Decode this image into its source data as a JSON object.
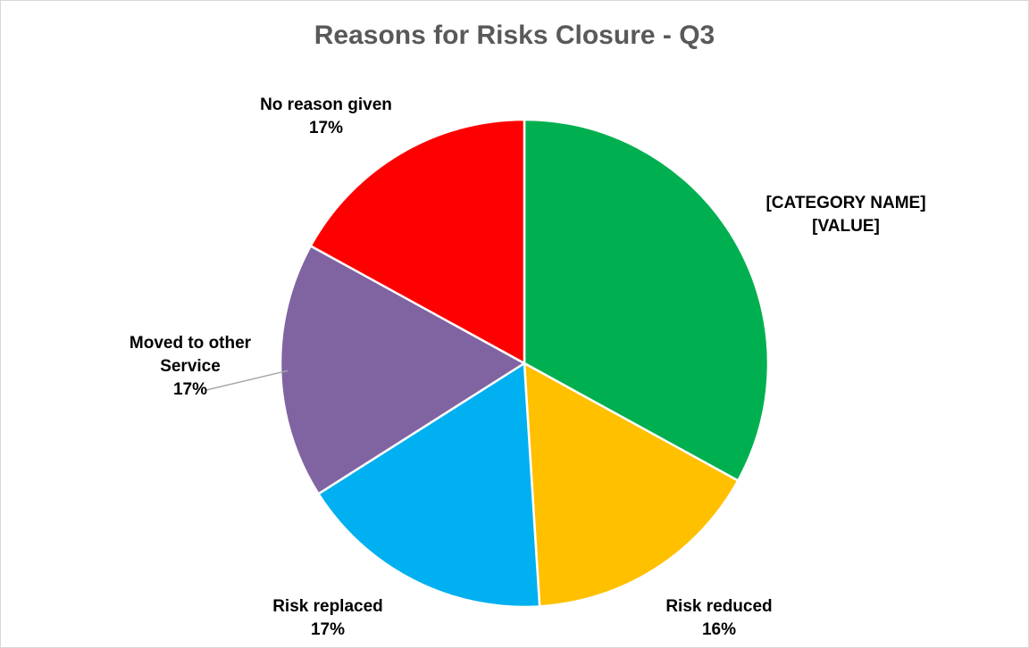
{
  "chart_data": {
    "type": "pie",
    "title": "Reasons for Risks Closure - Q3",
    "slices": [
      {
        "name": "[CATEGORY NAME]",
        "label_lines": [
          "[CATEGORY NAME]",
          "[VALUE]"
        ],
        "value": 33,
        "color": "#00b050"
      },
      {
        "name": "Risk reduced",
        "label_lines": [
          "Risk reduced",
          "16%"
        ],
        "value": 16,
        "color": "#ffc000"
      },
      {
        "name": "Risk replaced",
        "label_lines": [
          "Risk replaced",
          "17%"
        ],
        "value": 17,
        "color": "#00b0f0"
      },
      {
        "name": "Moved to other Service",
        "label_lines": [
          "Moved to other",
          "Service",
          "17%"
        ],
        "value": 17,
        "color": "#8064a2"
      },
      {
        "name": "No reason given",
        "label_lines": [
          "No reason given",
          "17%"
        ],
        "value": 17,
        "color": "#ff0000"
      }
    ],
    "start_angle_deg": 0,
    "direction": "clockwise",
    "legend": "none",
    "data_labels": "outside"
  }
}
